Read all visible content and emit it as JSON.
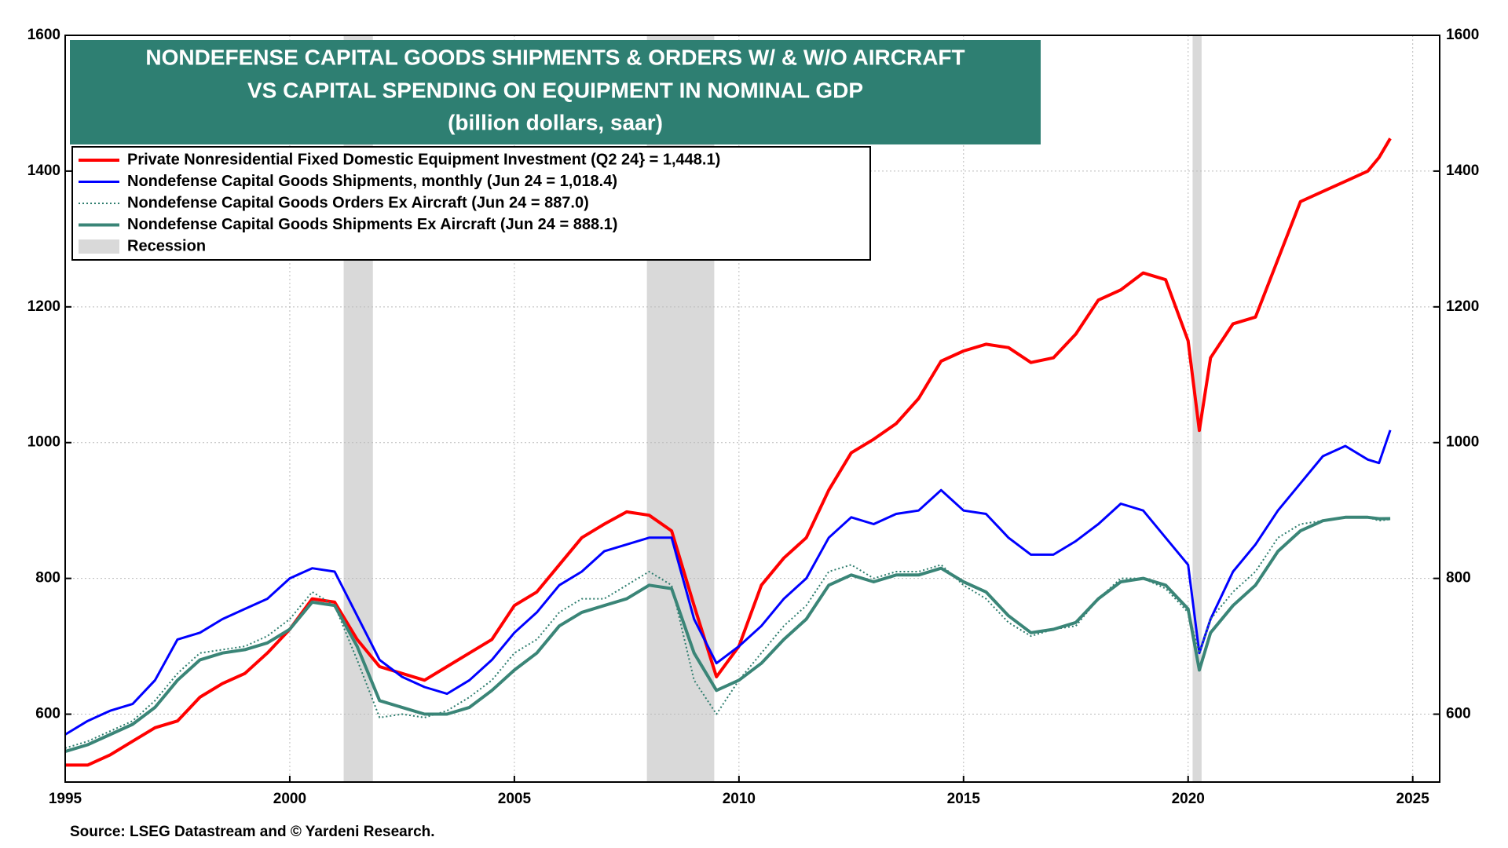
{
  "chart_data": {
    "type": "line",
    "title": [
      "NONDEFENSE CAPITAL GOODS SHIPMENTS & ORDERS W/ & W/O AIRCRAFT",
      "VS CAPITAL SPENDING ON EQUIPMENT IN NOMINAL GDP",
      "(billion dollars, saar)"
    ],
    "source": "Source: LSEG Datastream and © Yardeni Research.",
    "x": [
      1995.0,
      1995.5,
      1996.0,
      1996.5,
      1997.0,
      1997.5,
      1998.0,
      1998.5,
      1999.0,
      1999.5,
      2000.0,
      2000.5,
      2001.0,
      2001.5,
      2002.0,
      2002.5,
      2003.0,
      2003.5,
      2004.0,
      2004.5,
      2005.0,
      2005.5,
      2006.0,
      2006.5,
      2007.0,
      2007.5,
      2008.0,
      2008.5,
      2009.0,
      2009.5,
      2010.0,
      2010.5,
      2011.0,
      2011.5,
      2012.0,
      2012.5,
      2013.0,
      2013.5,
      2014.0,
      2014.5,
      2015.0,
      2015.5,
      2016.0,
      2016.5,
      2017.0,
      2017.5,
      2018.0,
      2018.5,
      2019.0,
      2019.5,
      2020.0,
      2020.25,
      2020.5,
      2021.0,
      2021.5,
      2022.0,
      2022.5,
      2023.0,
      2023.5,
      2024.0,
      2024.25,
      2024.5
    ],
    "series": [
      {
        "name": "Private Nonresidential Fixed Domestic Equipment Investment (Q2 24} = 1,448.1)",
        "color": "#ff0000",
        "style": "solid",
        "width": 4,
        "values": [
          525,
          525,
          540,
          560,
          580,
          590,
          625,
          645,
          660,
          690,
          725,
          770,
          765,
          710,
          670,
          660,
          650,
          670,
          690,
          710,
          760,
          780,
          820,
          860,
          880,
          898,
          893,
          870,
          760,
          655,
          700,
          790,
          830,
          860,
          930,
          985,
          1005,
          1028,
          1065,
          1120,
          1135,
          1145,
          1140,
          1118,
          1125,
          1160,
          1210,
          1225,
          1250,
          1240,
          1150,
          1018,
          1125,
          1175,
          1185,
          1270,
          1355,
          1370,
          1385,
          1400,
          1420,
          1448.1
        ]
      },
      {
        "name": "Nondefense Capital Goods Shipments, monthly (Jun 24 = 1,018.4)",
        "color": "#0000ff",
        "style": "solid",
        "width": 3,
        "values": [
          570,
          590,
          605,
          615,
          650,
          710,
          720,
          740,
          755,
          770,
          800,
          815,
          810,
          745,
          680,
          655,
          640,
          630,
          650,
          680,
          720,
          750,
          790,
          810,
          840,
          850,
          860,
          860,
          740,
          675,
          700,
          730,
          770,
          800,
          860,
          890,
          880,
          895,
          900,
          930,
          900,
          895,
          860,
          835,
          835,
          855,
          880,
          910,
          900,
          860,
          820,
          690,
          740,
          810,
          850,
          900,
          940,
          980,
          995,
          975,
          970,
          1018.4
        ]
      },
      {
        "name": "Nondefense Capital Goods Orders Ex Aircraft (Jun 24 = 887.0)",
        "color": "#2e7d6e",
        "style": "dotted",
        "width": 2,
        "values": [
          550,
          560,
          575,
          590,
          620,
          660,
          690,
          695,
          700,
          715,
          740,
          780,
          760,
          680,
          595,
          600,
          595,
          605,
          625,
          650,
          690,
          710,
          750,
          770,
          770,
          790,
          810,
          790,
          650,
          600,
          650,
          690,
          730,
          760,
          810,
          820,
          800,
          810,
          810,
          820,
          790,
          770,
          735,
          715,
          725,
          730,
          770,
          800,
          800,
          785,
          750,
          690,
          740,
          780,
          810,
          860,
          880,
          885,
          890,
          890,
          885,
          887.0
        ]
      },
      {
        "name": "Nondefense Capital Goods Shipments Ex Aircraft (Jun 24 = 888.1)",
        "color": "#3a8577",
        "style": "solid",
        "width": 4,
        "values": [
          545,
          555,
          570,
          585,
          610,
          650,
          680,
          690,
          695,
          705,
          725,
          765,
          760,
          700,
          620,
          610,
          600,
          600,
          610,
          635,
          665,
          690,
          730,
          750,
          760,
          770,
          790,
          785,
          690,
          635,
          650,
          675,
          710,
          740,
          790,
          805,
          795,
          805,
          805,
          815,
          795,
          780,
          745,
          720,
          725,
          735,
          770,
          795,
          800,
          790,
          755,
          665,
          720,
          760,
          790,
          840,
          870,
          885,
          890,
          890,
          888,
          888.1
        ]
      }
    ],
    "recession_label": "Recession",
    "recession_color": "#d9d9d9",
    "recessions": [
      [
        2001.2,
        2001.85
      ],
      [
        2007.95,
        2009.45
      ],
      [
        2020.1,
        2020.3
      ]
    ],
    "xlim": [
      1995,
      2025.6
    ],
    "xticks": [
      1995,
      2000,
      2005,
      2010,
      2015,
      2020,
      2025
    ],
    "ylim": [
      500,
      1600
    ],
    "yticks": [
      600,
      800,
      1000,
      1200,
      1400,
      1600
    ],
    "y2lim": [
      500,
      1600
    ],
    "y2ticks": [
      600,
      800,
      1000,
      1200,
      1400,
      1600
    ],
    "grid": true
  }
}
